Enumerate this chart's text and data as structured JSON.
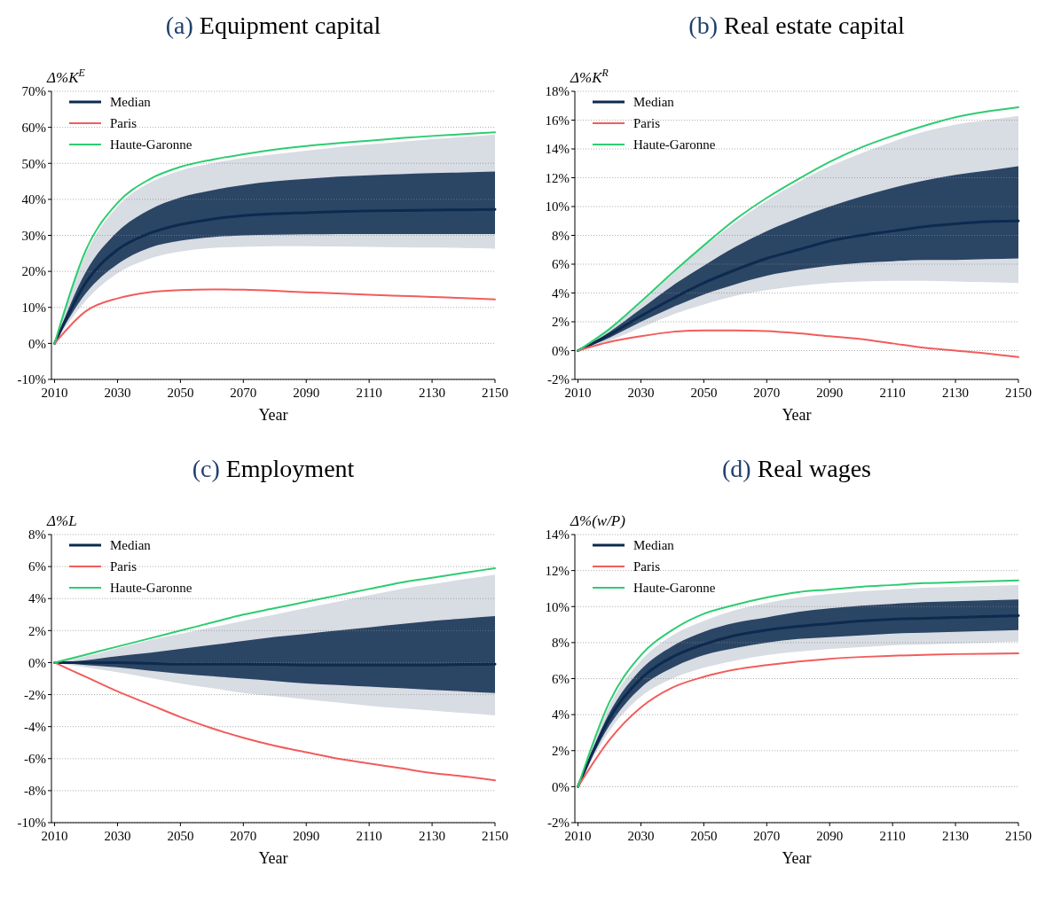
{
  "chart_data": [
    {
      "type": "line",
      "title": "(a) Equipment capital",
      "xlabel": "Year",
      "ylabel": "Δ%K$^{E}$",
      "x": [
        2010,
        2020,
        2030,
        2040,
        2050,
        2060,
        2070,
        2080,
        2090,
        2100,
        2110,
        2120,
        2130,
        2140,
        2150
      ],
      "xlim": [
        2009,
        2150
      ],
      "xticks": [
        2010,
        2030,
        2050,
        2070,
        2090,
        2110,
        2130,
        2150
      ],
      "ylim": [
        -10,
        70
      ],
      "yticks": [
        {
          "value": -10,
          "label": "-10%"
        },
        {
          "value": 0,
          "label": "0%"
        },
        {
          "value": 10,
          "label": "10%"
        },
        {
          "value": 20,
          "label": "20%"
        },
        {
          "value": 30,
          "label": "30%"
        },
        {
          "value": 40,
          "label": "40%"
        },
        {
          "value": 50,
          "label": "50%"
        },
        {
          "value": 60,
          "label": "60%"
        },
        {
          "value": 70,
          "label": "70%"
        }
      ],
      "grid": "y",
      "legend": "top left",
      "series": [
        {
          "color": "#d8dce3",
          "values": [
            null,
            null,
            null,
            null,
            null,
            null,
            null,
            null,
            null,
            null,
            null,
            null,
            null,
            null,
            null
          ],
          "lower": [
            0,
            12,
            19.5,
            23.5,
            25.5,
            26.5,
            26.8,
            27,
            27,
            26.9,
            26.8,
            26.7,
            26.6,
            26.5,
            26.3
          ],
          "upper": [
            0,
            25,
            38,
            44.5,
            48,
            50,
            51.5,
            52.5,
            53.5,
            54.5,
            55.3,
            56,
            56.7,
            57.3,
            58
          ]
        },
        {
          "name": "Median",
          "color": "#0d2a4f",
          "values": [
            0,
            17,
            26,
            30.5,
            33,
            34.5,
            35.5,
            36,
            36.3,
            36.6,
            36.8,
            36.9,
            37,
            37.1,
            37.2
          ],
          "lower": [
            0,
            14,
            22,
            26.5,
            28.5,
            29.5,
            30,
            30.2,
            30.3,
            30.4,
            30.4,
            30.4,
            30.4,
            30.4,
            30.4
          ],
          "upper": [
            0,
            20,
            31,
            37,
            40.5,
            42.5,
            44,
            45,
            45.7,
            46.3,
            46.7,
            47,
            47.3,
            47.5,
            47.7
          ]
        },
        {
          "name": "Paris",
          "color": "#f25c5c",
          "values": [
            0,
            9,
            12.5,
            14.2,
            14.8,
            15,
            14.9,
            14.6,
            14.2,
            13.9,
            13.5,
            13.2,
            12.9,
            12.6,
            12.2
          ]
        },
        {
          "name": "Haute-Garonne",
          "color": "#2ecc71",
          "values": [
            0,
            26,
            39,
            45.5,
            49,
            51,
            52.5,
            53.8,
            54.8,
            55.6,
            56.3,
            57,
            57.6,
            58.1,
            58.6
          ]
        }
      ]
    },
    {
      "type": "line",
      "title": "(b) Real estate capital",
      "xlabel": "Year",
      "ylabel": "Δ%K$^{R}$",
      "x": [
        2010,
        2020,
        2030,
        2040,
        2050,
        2060,
        2070,
        2080,
        2090,
        2100,
        2110,
        2120,
        2130,
        2140,
        2150
      ],
      "xlim": [
        2009,
        2150
      ],
      "xticks": [
        2010,
        2030,
        2050,
        2070,
        2090,
        2110,
        2130,
        2150
      ],
      "ylim": [
        -2,
        18
      ],
      "yticks": [
        {
          "value": -2,
          "label": "-2%"
        },
        {
          "value": 0,
          "label": "0%"
        },
        {
          "value": 2,
          "label": "2%"
        },
        {
          "value": 4,
          "label": "4%"
        },
        {
          "value": 6,
          "label": "6%"
        },
        {
          "value": 8,
          "label": "8%"
        },
        {
          "value": 10,
          "label": "10%"
        },
        {
          "value": 12,
          "label": "12%"
        },
        {
          "value": 14,
          "label": "14%"
        },
        {
          "value": 16,
          "label": "16%"
        },
        {
          "value": 18,
          "label": "18%"
        }
      ],
      "grid": "y",
      "legend": "top left",
      "series": [
        {
          "color": "#d8dce3",
          "values": [
            null,
            null,
            null,
            null,
            null,
            null,
            null,
            null,
            null,
            null,
            null,
            null,
            null,
            null,
            null
          ],
          "lower": [
            0,
            0.7,
            1.6,
            2.5,
            3.2,
            3.8,
            4.2,
            4.5,
            4.7,
            4.8,
            4.85,
            4.85,
            4.8,
            4.75,
            4.7
          ],
          "upper": [
            0,
            1.5,
            3.3,
            5.3,
            7.2,
            8.9,
            10.4,
            11.7,
            12.8,
            13.7,
            14.5,
            15.2,
            15.7,
            16,
            16.3
          ]
        },
        {
          "name": "Median",
          "color": "#0d2a4f",
          "values": [
            0,
            1.1,
            2.4,
            3.6,
            4.7,
            5.6,
            6.4,
            7,
            7.6,
            8,
            8.3,
            8.6,
            8.8,
            8.95,
            9
          ],
          "lower": [
            0,
            0.9,
            2,
            3,
            3.9,
            4.6,
            5.2,
            5.6,
            5.9,
            6.1,
            6.2,
            6.3,
            6.3,
            6.35,
            6.4
          ],
          "upper": [
            0,
            1.3,
            2.9,
            4.5,
            5.9,
            7.2,
            8.3,
            9.2,
            10,
            10.7,
            11.3,
            11.8,
            12.2,
            12.5,
            12.8
          ]
        },
        {
          "name": "Paris",
          "color": "#f25c5c",
          "values": [
            0,
            0.6,
            1,
            1.3,
            1.4,
            1.4,
            1.35,
            1.2,
            1,
            0.8,
            0.5,
            0.2,
            0,
            -0.2,
            -0.45
          ]
        },
        {
          "name": "Haute-Garonne",
          "color": "#2ecc71",
          "values": [
            0,
            1.5,
            3.4,
            5.4,
            7.3,
            9.1,
            10.6,
            11.9,
            13.1,
            14.1,
            14.9,
            15.6,
            16.2,
            16.6,
            16.9
          ]
        }
      ]
    },
    {
      "type": "line",
      "title": "(c) Employment",
      "xlabel": "Year",
      "ylabel": "Δ%L",
      "x": [
        2010,
        2020,
        2030,
        2040,
        2050,
        2060,
        2070,
        2080,
        2090,
        2100,
        2110,
        2120,
        2130,
        2140,
        2150
      ],
      "xlim": [
        2009,
        2150
      ],
      "xticks": [
        2010,
        2030,
        2050,
        2070,
        2090,
        2110,
        2130,
        2150
      ],
      "ylim": [
        -10,
        8
      ],
      "yticks": [
        {
          "value": -10,
          "label": "-10%"
        },
        {
          "value": -8,
          "label": "-8%"
        },
        {
          "value": -6,
          "label": "-6%"
        },
        {
          "value": -4,
          "label": "-4%"
        },
        {
          "value": -2,
          "label": "-2%"
        },
        {
          "value": 0,
          "label": "0%"
        },
        {
          "value": 2,
          "label": "2%"
        },
        {
          "value": 4,
          "label": "4%"
        },
        {
          "value": 6,
          "label": "6%"
        },
        {
          "value": 8,
          "label": "8%"
        }
      ],
      "grid": "y",
      "legend": "top left",
      "series": [
        {
          "color": "#d8dce3",
          "values": [
            null,
            null,
            null,
            null,
            null,
            null,
            null,
            null,
            null,
            null,
            null,
            null,
            null,
            null,
            null
          ],
          "lower": [
            0,
            -0.3,
            -0.6,
            -0.95,
            -1.3,
            -1.6,
            -1.9,
            -2.1,
            -2.3,
            -2.5,
            -2.7,
            -2.85,
            -3,
            -3.15,
            -3.3
          ],
          "upper": [
            0,
            0.4,
            0.9,
            1.4,
            1.8,
            2.2,
            2.6,
            3,
            3.4,
            3.8,
            4.2,
            4.6,
            4.9,
            5.2,
            5.5
          ]
        },
        {
          "name": "Median",
          "color": "#0d2a4f",
          "values": [
            0,
            0,
            0,
            -0.05,
            -0.1,
            -0.1,
            -0.1,
            -0.12,
            -0.15,
            -0.15,
            -0.15,
            -0.15,
            -0.15,
            -0.12,
            -0.1
          ],
          "lower": [
            0,
            -0.15,
            -0.3,
            -0.5,
            -0.7,
            -0.85,
            -1,
            -1.15,
            -1.3,
            -1.4,
            -1.5,
            -1.6,
            -1.7,
            -1.8,
            -1.9
          ],
          "upper": [
            0,
            0.15,
            0.4,
            0.6,
            0.85,
            1.1,
            1.35,
            1.6,
            1.8,
            2,
            2.2,
            2.4,
            2.6,
            2.75,
            2.9
          ]
        },
        {
          "name": "Paris",
          "color": "#f25c5c",
          "values": [
            0,
            -0.9,
            -1.8,
            -2.6,
            -3.4,
            -4.1,
            -4.7,
            -5.2,
            -5.6,
            -6,
            -6.3,
            -6.6,
            -6.9,
            -7.1,
            -7.35
          ]
        },
        {
          "name": "Haute-Garonne",
          "color": "#2ecc71",
          "values": [
            0,
            0.5,
            1,
            1.5,
            2,
            2.5,
            3,
            3.4,
            3.8,
            4.2,
            4.6,
            5,
            5.3,
            5.6,
            5.9
          ]
        }
      ]
    },
    {
      "type": "line",
      "title": "(d) Real wages",
      "xlabel": "Year",
      "ylabel": "Δ%(w/P)",
      "x": [
        2010,
        2020,
        2030,
        2040,
        2050,
        2060,
        2070,
        2080,
        2090,
        2100,
        2110,
        2120,
        2130,
        2140,
        2150
      ],
      "xlim": [
        2009,
        2150
      ],
      "xticks": [
        2010,
        2030,
        2050,
        2070,
        2090,
        2110,
        2130,
        2150
      ],
      "ylim": [
        -2,
        14
      ],
      "yticks": [
        {
          "value": -2,
          "label": "-2%"
        },
        {
          "value": 0,
          "label": "0%"
        },
        {
          "value": 2,
          "label": "2%"
        },
        {
          "value": 4,
          "label": "4%"
        },
        {
          "value": 6,
          "label": "6%"
        },
        {
          "value": 8,
          "label": "8%"
        },
        {
          "value": 10,
          "label": "10%"
        },
        {
          "value": 12,
          "label": "12%"
        },
        {
          "value": 14,
          "label": "14%"
        }
      ],
      "grid": "y",
      "legend": "top left",
      "series": [
        {
          "color": "#d8dce3",
          "values": [
            null,
            null,
            null,
            null,
            null,
            null,
            null,
            null,
            null,
            null,
            null,
            null,
            null,
            null,
            null
          ],
          "lower": [
            0,
            3.1,
            5,
            6,
            6.6,
            7,
            7.3,
            7.5,
            7.65,
            7.75,
            7.85,
            7.9,
            7.95,
            8,
            8.05
          ],
          "upper": [
            0,
            4.5,
            7,
            8.4,
            9.2,
            9.8,
            10.2,
            10.5,
            10.7,
            10.85,
            10.95,
            11.05,
            11.1,
            11.15,
            11.2
          ]
        },
        {
          "name": "Median",
          "color": "#0d2a4f",
          "values": [
            0,
            3.8,
            6,
            7.2,
            7.9,
            8.4,
            8.7,
            8.9,
            9.05,
            9.2,
            9.3,
            9.35,
            9.4,
            9.45,
            9.5
          ],
          "lower": [
            0,
            3.4,
            5.5,
            6.6,
            7.3,
            7.7,
            8,
            8.2,
            8.3,
            8.4,
            8.5,
            8.55,
            8.6,
            8.65,
            8.7
          ],
          "upper": [
            0,
            4.1,
            6.5,
            7.8,
            8.6,
            9.1,
            9.4,
            9.7,
            9.9,
            10.05,
            10.15,
            10.25,
            10.3,
            10.35,
            10.4
          ]
        },
        {
          "name": "Paris",
          "color": "#f25c5c",
          "values": [
            0,
            2.6,
            4.4,
            5.5,
            6.1,
            6.5,
            6.75,
            6.95,
            7.1,
            7.2,
            7.27,
            7.32,
            7.36,
            7.38,
            7.4
          ]
        },
        {
          "name": "Haute-Garonne",
          "color": "#2ecc71",
          "values": [
            0,
            4.7,
            7.3,
            8.7,
            9.6,
            10.1,
            10.5,
            10.8,
            10.95,
            11.1,
            11.2,
            11.3,
            11.35,
            11.4,
            11.45
          ]
        }
      ]
    }
  ]
}
